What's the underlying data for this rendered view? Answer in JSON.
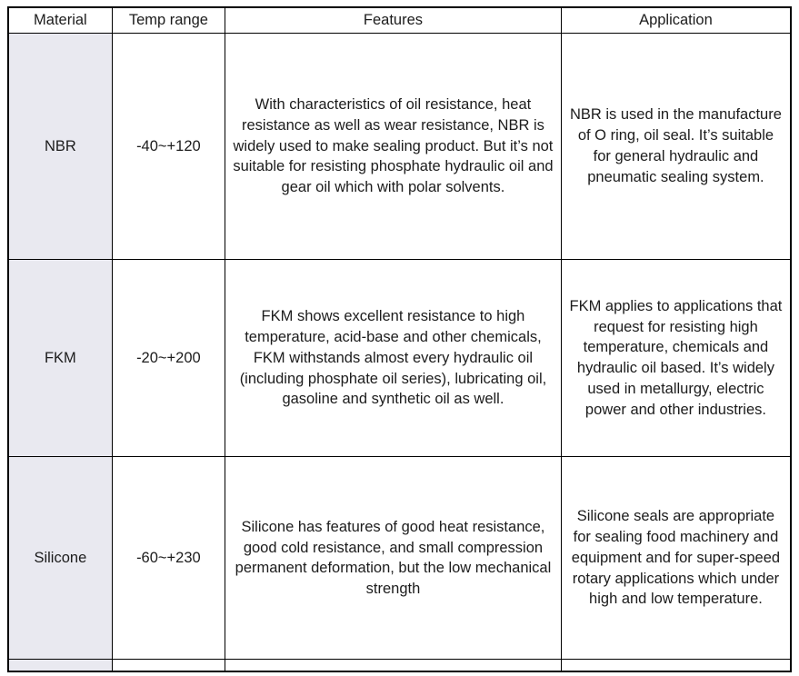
{
  "table": {
    "headers": [
      "Material",
      "Temp range",
      "Features",
      "Application"
    ],
    "rows": [
      {
        "material": "NBR",
        "temp_range": "-40~+120",
        "features": "With characteristics of oil resistance, heat resistance as well as wear resistance, NBR is widely used to make sealing product. But it’s not suitable for resisting phosphate hydraulic oil and gear oil which with polar solvents.",
        "application": "NBR is used in the manufacture of O ring, oil seal. It’s suitable for general hydraulic and pneumatic sealing system."
      },
      {
        "material": "FKM",
        "temp_range": "-20~+200",
        "features": "FKM shows excellent resistance to high temperature, acid-base and other chemicals, FKM withstands almost every hydraulic oil (including phosphate oil series), lubricating oil, gasoline and synthetic oil as well.",
        "application": "FKM applies to applications that request for resisting high temperature, chemicals and hydraulic oil based. It’s widely used in metallurgy, electric power and other industries."
      },
      {
        "material": "Silicone",
        "temp_range": "-60~+230",
        "features": "Silicone has features of good heat resistance, good cold resistance, and small compression permanent deformation, but the low mechanical strength",
        "application": "Silicone seals are appropriate for sealing food machinery and equipment and for super-speed rotary applications which under high and low temperature."
      }
    ],
    "colors": {
      "border": "#000000",
      "material_cell_bg": "#e9e9f0",
      "header_bg": "#ffffff",
      "text": "#1c1c1c"
    }
  }
}
